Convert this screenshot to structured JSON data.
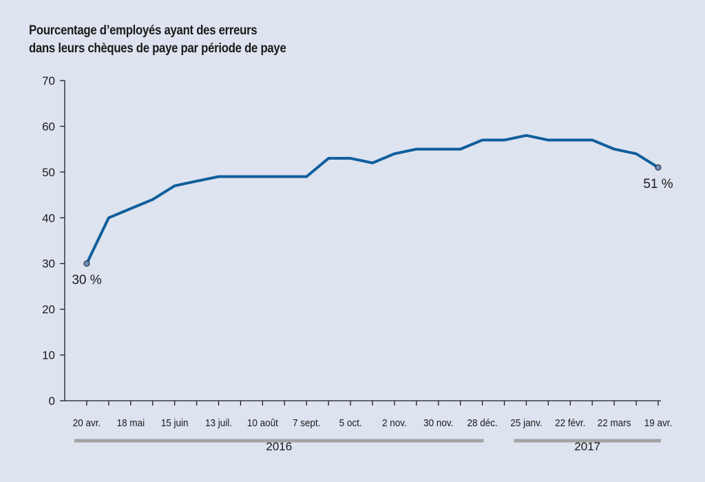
{
  "title_lines": [
    "Pourcentage d’employés ayant des erreurs",
    "dans leurs chèques de paye par période de paye"
  ],
  "chart_data": {
    "type": "line",
    "title": "Pourcentage d’employés ayant des erreurs dans leurs chèques de paye par période de paye",
    "xlabel": "",
    "ylabel": "",
    "ylim": [
      0,
      70
    ],
    "yticks": [
      0,
      10,
      20,
      30,
      40,
      50,
      60,
      70
    ],
    "grid": false,
    "x_tick_labels": [
      "20 avr.",
      "18 mai",
      "15 juin",
      "13 juil.",
      "10 août",
      "7 sept.",
      "5 oct.",
      "2 nov.",
      "30 nov.",
      "28 déc.",
      "25 janv.",
      "22 févr.",
      "22 mars",
      "19 avr."
    ],
    "years": [
      {
        "label": "2016",
        "from_tick": 0,
        "to_tick": 9
      },
      {
        "label": "2017",
        "from_tick": 10,
        "to_tick": 13
      }
    ],
    "series": [
      {
        "color": "#0f5e9c",
        "values": [
          30,
          40,
          42,
          44,
          47,
          48,
          49,
          49,
          49,
          49,
          49,
          53,
          53,
          52,
          54,
          55,
          55,
          55,
          57,
          57,
          58,
          57,
          57,
          57,
          55,
          54,
          51
        ]
      }
    ],
    "annotations": [
      {
        "text": "30 %",
        "point_index": 0
      },
      {
        "text": "51 %",
        "point_index": 26
      }
    ]
  },
  "colors": {
    "line": "#0f5e9c",
    "marker_fill": "#6e8fb8",
    "year_bar": "#a3a3a3",
    "axis": "#1a1a1a"
  }
}
